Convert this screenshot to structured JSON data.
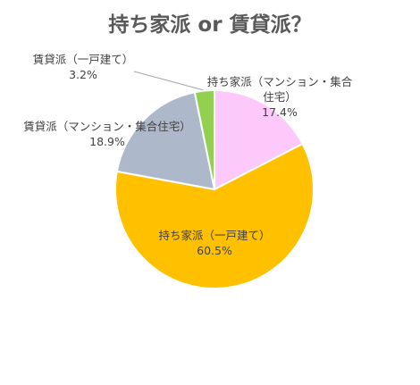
{
  "chart_data": {
    "type": "pie",
    "title": "持ち家派 or 賃貸派？",
    "categories": [
      "持ち家派（マンション・集合住宅）",
      "持ち家派（一戸建て）",
      "賃貸派（マンション・集合住宅）",
      "賃貸派（一戸建て）"
    ],
    "values": [
      17.4,
      60.5,
      18.9,
      3.2
    ],
    "value_labels": [
      "17.4%",
      "60.5%",
      "18.9%",
      "3.2%"
    ],
    "colors": [
      "#fdc9fb",
      "#ffc000",
      "#adb9ca",
      "#92d050"
    ]
  }
}
